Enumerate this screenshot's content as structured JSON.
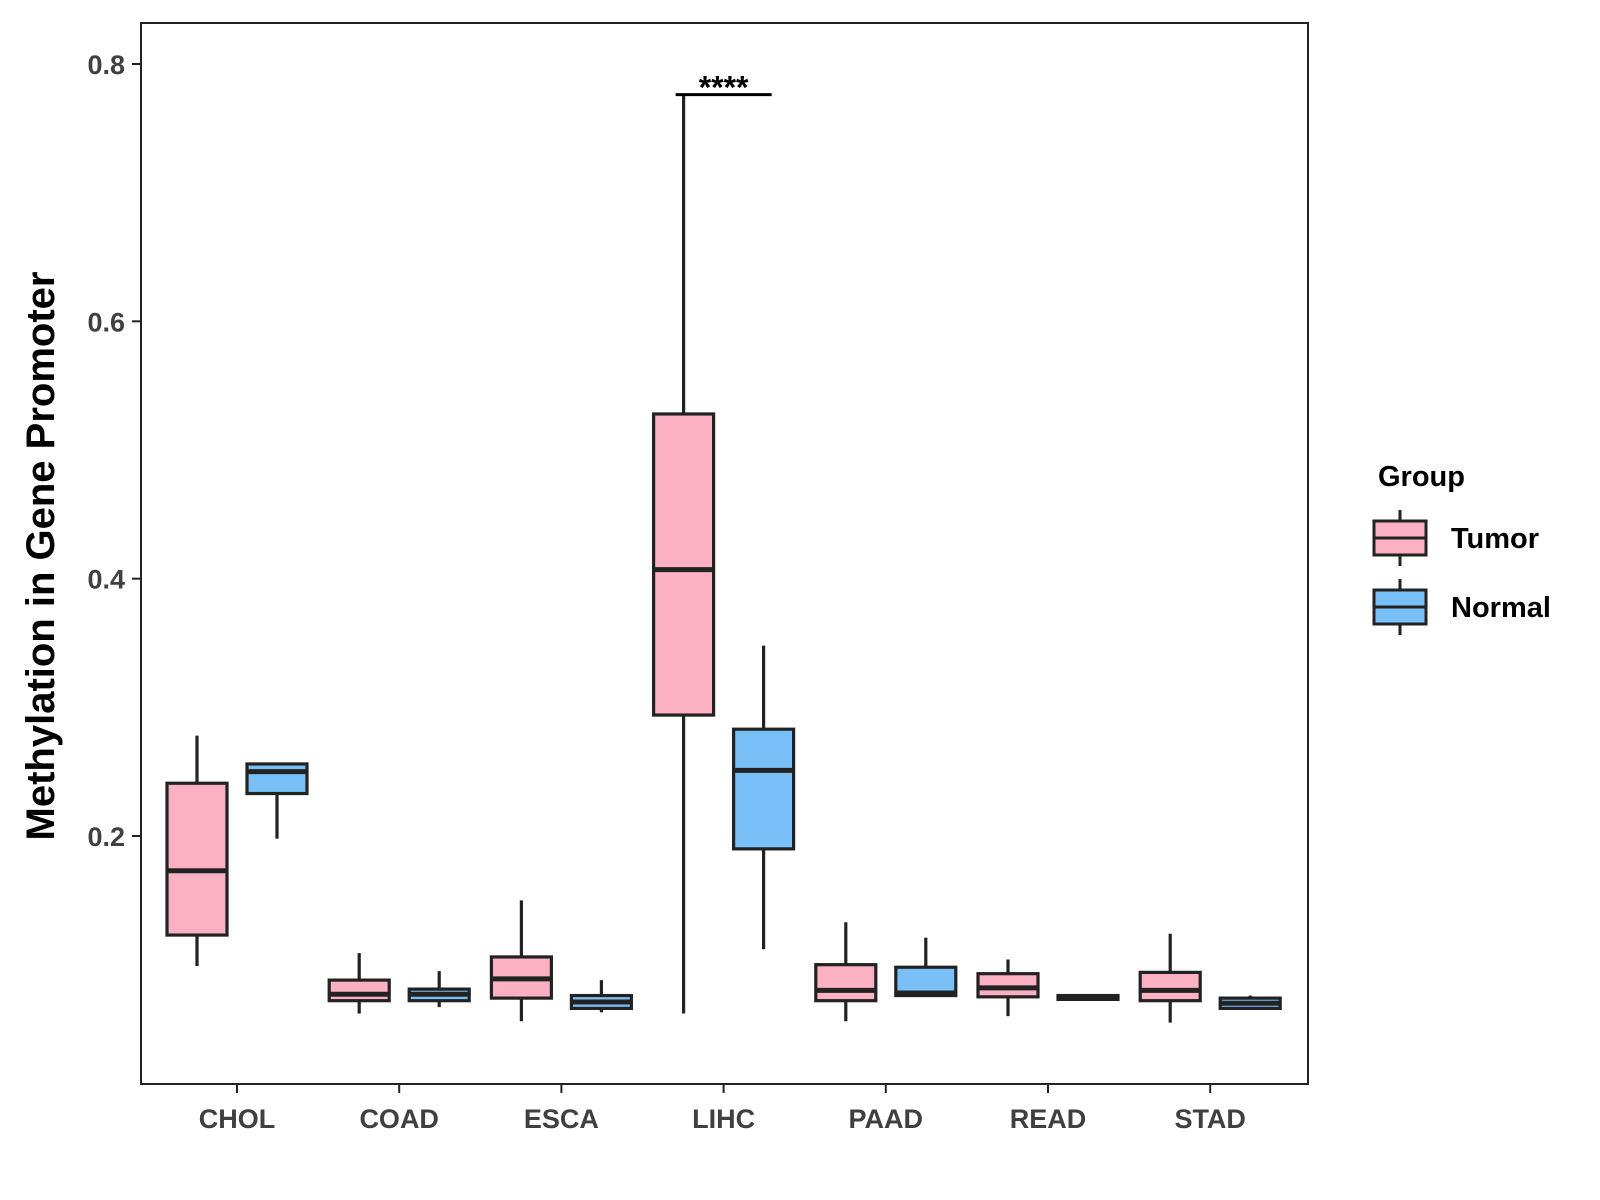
{
  "chart_data": {
    "type": "boxplot",
    "title": "",
    "xlabel": "",
    "ylabel": "Methylation in Gene Promoter",
    "ylim": [
      0.01,
      0.83
    ],
    "y_ticks": [
      0.2,
      0.4,
      0.6,
      0.8
    ],
    "y_tick_labels": [
      "0.2",
      "0.4",
      "0.6",
      "0.8"
    ],
    "categories": [
      "CHOL",
      "COAD",
      "ESCA",
      "LIHC",
      "PAAD",
      "READ",
      "STAD"
    ],
    "grid": false,
    "legend": {
      "title": "Group",
      "position": "right",
      "entries": [
        {
          "name": "Tumor",
          "color": "#FBB1C3"
        },
        {
          "name": "Normal",
          "color": "#79C0F8"
        }
      ]
    },
    "series": [
      {
        "name": "Tumor",
        "color": "#FBB1C3",
        "boxes": [
          {
            "category": "CHOL",
            "min": 0.099,
            "q1": 0.123,
            "median": 0.173,
            "q3": 0.241,
            "max": 0.278
          },
          {
            "category": "COAD",
            "min": 0.062,
            "q1": 0.072,
            "median": 0.077,
            "q3": 0.088,
            "max": 0.109
          },
          {
            "category": "ESCA",
            "min": 0.056,
            "q1": 0.074,
            "median": 0.089,
            "q3": 0.106,
            "max": 0.15
          },
          {
            "category": "LIHC",
            "min": 0.062,
            "q1": 0.294,
            "median": 0.407,
            "q3": 0.528,
            "max": 0.777
          },
          {
            "category": "PAAD",
            "min": 0.056,
            "q1": 0.072,
            "median": 0.08,
            "q3": 0.1,
            "max": 0.133
          },
          {
            "category": "READ",
            "min": 0.06,
            "q1": 0.075,
            "median": 0.082,
            "q3": 0.093,
            "max": 0.104
          },
          {
            "category": "STAD",
            "min": 0.055,
            "q1": 0.072,
            "median": 0.08,
            "q3": 0.094,
            "max": 0.124
          }
        ]
      },
      {
        "name": "Normal",
        "color": "#79C0F8",
        "boxes": [
          {
            "category": "CHOL",
            "min": 0.198,
            "q1": 0.233,
            "median": 0.25,
            "q3": 0.256,
            "max": 0.256
          },
          {
            "category": "COAD",
            "min": 0.067,
            "q1": 0.072,
            "median": 0.077,
            "q3": 0.081,
            "max": 0.095
          },
          {
            "category": "ESCA",
            "min": 0.063,
            "q1": 0.066,
            "median": 0.071,
            "q3": 0.076,
            "max": 0.088
          },
          {
            "category": "LIHC",
            "min": 0.112,
            "q1": 0.19,
            "median": 0.251,
            "q3": 0.283,
            "max": 0.348
          },
          {
            "category": "PAAD",
            "min": 0.076,
            "q1": 0.076,
            "median": 0.078,
            "q3": 0.098,
            "max": 0.121
          },
          {
            "category": "READ",
            "min": 0.073,
            "q1": 0.073,
            "median": 0.074,
            "q3": 0.076,
            "max": 0.076
          },
          {
            "category": "STAD",
            "min": 0.065,
            "q1": 0.066,
            "median": 0.07,
            "q3": 0.074,
            "max": 0.076
          }
        ]
      }
    ],
    "annotations": [
      {
        "category": "LIHC",
        "text": "****",
        "y": 0.777
      }
    ]
  },
  "colors": {
    "tumor": "#FBB1C3",
    "normal": "#79C0F8",
    "outline": "#222222",
    "axis": "#222222"
  }
}
